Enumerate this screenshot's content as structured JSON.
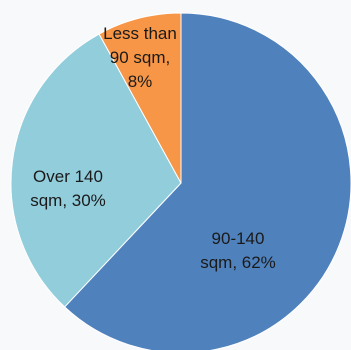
{
  "chart_data": {
    "type": "pie",
    "title": "",
    "categories": [
      "90-140 sqm",
      "Over 140 sqm",
      "Less than 90 sqm"
    ],
    "values": [
      62,
      30,
      8
    ],
    "unit": "%",
    "colors": [
      "#4f81bd",
      "#92cddc",
      "#f79646"
    ],
    "data_labels": [
      [
        "90-140",
        "sqm, 62%"
      ],
      [
        "Over 140",
        "sqm, 30%"
      ],
      [
        "Less than",
        "90 sqm,",
        "8%"
      ]
    ],
    "legend": "none",
    "start_angle": "12 o'clock",
    "direction": "clockwise"
  }
}
